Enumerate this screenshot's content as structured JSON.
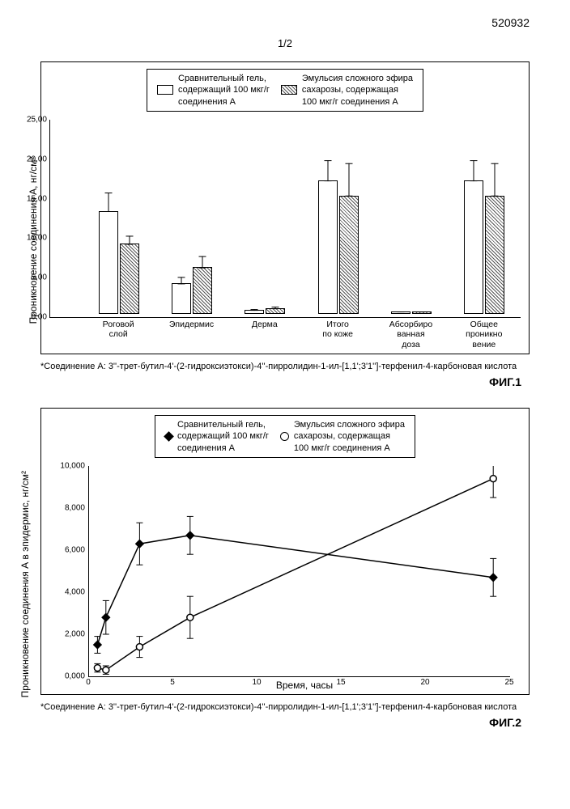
{
  "page_number": "520932",
  "sheet": "1/2",
  "bar_chart": {
    "type": "bar",
    "legend": {
      "series1_lines": [
        "Сравнительный гель,",
        "содержащий 100 мкг/г",
        "соединения А"
      ],
      "series2_lines": [
        "Эмульсия сложного эфира",
        "сахарозы, содержащая",
        "100 мкг/г соединения А"
      ]
    },
    "y_label": "Проникновение соединения А, нг/см²",
    "y_ticks": [
      "0,00",
      "5,00",
      "10,00",
      "15,00",
      "20,00",
      "25,00"
    ],
    "ylim_max": 25,
    "categories": [
      [
        "Роговой",
        "слой"
      ],
      [
        "Эпидермис",
        ""
      ],
      [
        "Дерма",
        ""
      ],
      [
        "Итого",
        "по коже"
      ],
      [
        "Абсорбиро",
        "ванная",
        "доза"
      ],
      [
        "Общее",
        "проникно",
        "вение"
      ]
    ],
    "series1": {
      "values": [
        13.0,
        3.7,
        0.3,
        17.0,
        0.1,
        17.0
      ],
      "err": [
        2.5,
        0.9,
        0.2,
        2.7,
        0.1,
        2.7
      ]
    },
    "series2": {
      "values": [
        8.8,
        5.8,
        0.5,
        15.0,
        0.1,
        15.0
      ],
      "err": [
        1.1,
        1.5,
        0.3,
        4.3,
        0.1,
        4.3
      ]
    },
    "bar_color_1": "#ffffff",
    "bar_color_2_pattern": "hatch"
  },
  "footnote1": "*Соединение А: 3''-трет-бутил-4'-(2-гидроксиэтокси)-4''-пирролидин-1-ил-[1,1';3'1'']-терфенил-4-карбоновая кислота",
  "fig1_label": "ФИГ.1",
  "line_chart": {
    "type": "line",
    "legend": {
      "series1_lines": [
        "Сравнительный гель,",
        "содержащий 100 мкг/г",
        "соединения А"
      ],
      "series2_lines": [
        "Эмульсия сложного эфира",
        "сахарозы, содержащая",
        "100 мкг/г соединения А"
      ]
    },
    "y_label": "Проникновение соединения А в эпидермис, нг/см²",
    "x_label": "Время, часы",
    "xticks": [
      0,
      5,
      10,
      15,
      20,
      25
    ],
    "yticks": [
      "0,000",
      "2,000",
      "4,000",
      "6,000",
      "8,000",
      "10,000"
    ],
    "xlim": [
      0,
      25
    ],
    "ylim": [
      0,
      10000
    ],
    "series1": {
      "x": [
        0.5,
        1,
        3,
        6,
        24
      ],
      "y": [
        1500,
        2800,
        6300,
        6700,
        4700
      ],
      "err": [
        400,
        800,
        1000,
        900,
        900
      ],
      "marker": "diamond",
      "color": "#000"
    },
    "series2": {
      "x": [
        0.5,
        1,
        3,
        6,
        24
      ],
      "y": [
        400,
        300,
        1400,
        2800,
        9400
      ],
      "err": [
        200,
        200,
        500,
        1000,
        900
      ],
      "marker": "circle",
      "color": "#000"
    }
  },
  "footnote2": "*Соединение А: 3''-трет-бутил-4'-(2-гидроксиэтокси)-4''-пирролидин-1-ил-[1,1';3'1'']-терфенил-4-карбоновая кислота",
  "fig2_label": "ФИГ.2"
}
